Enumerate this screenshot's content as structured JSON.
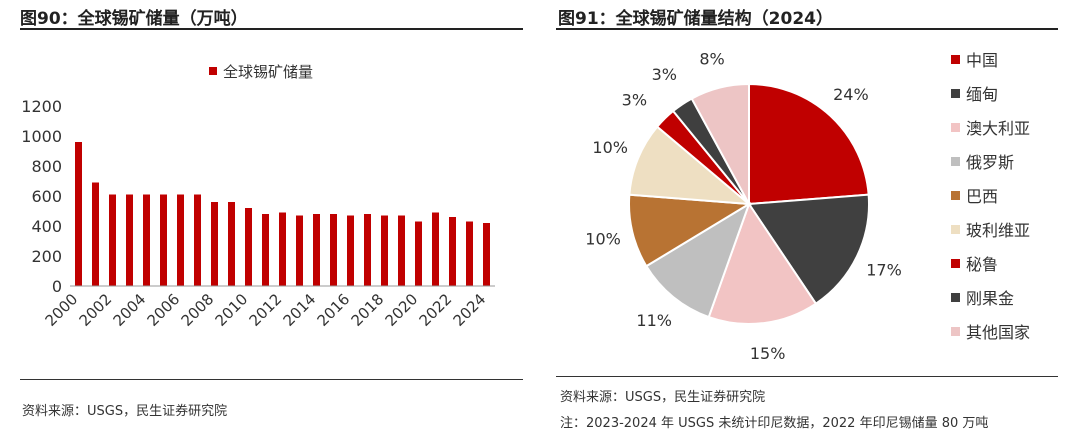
{
  "panel_left": {
    "title": "图90：全球锡矿储量（万吨）",
    "source": "资料来源：USGS，民生证券研究院"
  },
  "panel_right": {
    "title": "图91：全球锡矿储量结构（2024）",
    "source": "资料来源：USGS，民生证券研究院",
    "note": "注：2023-2024 年 USGS 未统计印尼数据，2022 年印尼锡储量 80 万吨"
  },
  "colors": {
    "bar": "#C00000",
    "pie": [
      "#C00000",
      "#404040",
      "#F2C4C4",
      "#BFBFBF",
      "#B87333",
      "#EEDFC2",
      "#C00000",
      "#3F3F3F",
      "#EDC5C5"
    ]
  },
  "chart_data": [
    {
      "type": "bar",
      "title": "",
      "legend": [
        "全球锡矿储量"
      ],
      "legend_placement": "top",
      "x": [
        2000,
        2001,
        2002,
        2003,
        2004,
        2005,
        2006,
        2007,
        2008,
        2009,
        2010,
        2011,
        2012,
        2013,
        2014,
        2015,
        2016,
        2017,
        2018,
        2019,
        2020,
        2021,
        2022,
        2023,
        2024
      ],
      "x_tick_labels": [
        "2000",
        "2002",
        "2004",
        "2006",
        "2008",
        "2010",
        "2012",
        "2014",
        "2016",
        "2018",
        "2020",
        "2022",
        "2024"
      ],
      "series": [
        {
          "name": "全球锡矿储量",
          "values": [
            960,
            690,
            610,
            610,
            610,
            610,
            610,
            610,
            560,
            560,
            520,
            480,
            490,
            470,
            480,
            480,
            470,
            480,
            470,
            470,
            430,
            490,
            460,
            430,
            420
          ]
        }
      ],
      "ylim": [
        0,
        1200
      ],
      "y_ticks": [
        0,
        200,
        400,
        600,
        800,
        1000,
        1200
      ],
      "grid": false,
      "xlabel": "",
      "ylabel": ""
    },
    {
      "type": "pie",
      "title": "",
      "legend_placement": "right",
      "labels": [
        "中国",
        "缅甸",
        "澳大利亚",
        "俄罗斯",
        "巴西",
        "玻利维亚",
        "秘鲁",
        "刚果金",
        "其他国家"
      ],
      "values": [
        24,
        17,
        15,
        11,
        10,
        10,
        3,
        3,
        8
      ],
      "value_labels": [
        "24%",
        "17%",
        "15%",
        "11%",
        "10%",
        "10%",
        "3%",
        "3%",
        "8%"
      ]
    }
  ]
}
